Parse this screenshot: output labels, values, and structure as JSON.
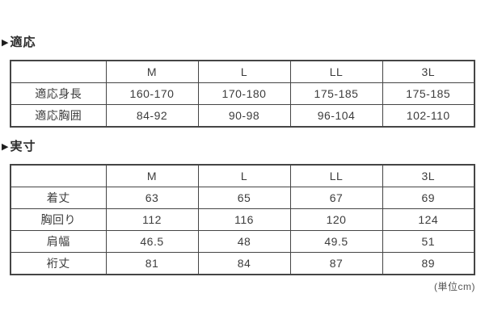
{
  "unit_note": "(単位cm)",
  "sections": [
    {
      "heading_marker": "▶",
      "heading_label": "適応",
      "table": {
        "columns": [
          "M",
          "L",
          "LL",
          "3L"
        ],
        "rows": [
          {
            "label": "適応身長",
            "values": [
              "160-170",
              "170-180",
              "175-185",
              "175-185"
            ]
          },
          {
            "label": "適応胸囲",
            "values": [
              "84-92",
              "90-98",
              "96-104",
              "102-110"
            ]
          }
        ]
      }
    },
    {
      "heading_marker": "▶",
      "heading_label": "実寸",
      "table": {
        "columns": [
          "M",
          "L",
          "LL",
          "3L"
        ],
        "rows": [
          {
            "label": "着丈",
            "values": [
              "63",
              "65",
              "67",
              "69"
            ]
          },
          {
            "label": "胸回り",
            "values": [
              "112",
              "116",
              "120",
              "124"
            ]
          },
          {
            "label": "肩幅",
            "values": [
              "46.5",
              "48",
              "49.5",
              "51"
            ]
          },
          {
            "label": "裄丈",
            "values": [
              "81",
              "84",
              "87",
              "89"
            ]
          }
        ]
      }
    }
  ]
}
